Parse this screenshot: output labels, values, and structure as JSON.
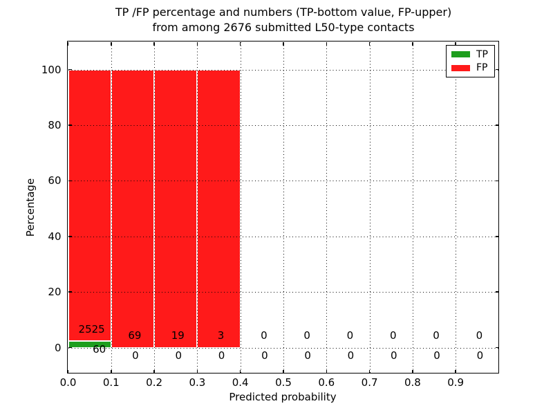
{
  "title": {
    "line1": "TP /FP percentage and numbers (TP-bottom value, FP-upper)",
    "line2": "from among 2676 submitted L50-type contacts"
  },
  "axes": {
    "xlabel": "Predicted probability",
    "ylabel": "Percentage",
    "x_tick_labels": [
      "0.0",
      "0.1",
      "0.2",
      "0.3",
      "0.4",
      "0.5",
      "0.6",
      "0.7",
      "0.8",
      "0.9"
    ],
    "y_tick_labels": [
      "0",
      "20",
      "40",
      "60",
      "80",
      "100"
    ]
  },
  "legend": {
    "items": [
      {
        "label": "TP",
        "color": "#1e9e1e"
      },
      {
        "label": "FP",
        "color": "#ff1a1a"
      }
    ]
  },
  "chart_data": {
    "type": "bar",
    "stacked": true,
    "title": "TP /FP percentage and numbers (TP-bottom value, FP-upper) from among 2676 submitted L50-type contacts",
    "xlabel": "Predicted probability",
    "ylabel": "Percentage",
    "xlim": [
      0.0,
      1.0
    ],
    "ylim": [
      -9.2,
      110
    ],
    "grid": true,
    "legend_position": "upper right",
    "total_contacts": 2676,
    "bin_edges": [
      0.0,
      0.1,
      0.2,
      0.3,
      0.4,
      0.5,
      0.6,
      0.7,
      0.8,
      0.9,
      1.0
    ],
    "x_ticks": [
      0.0,
      0.1,
      0.2,
      0.3,
      0.4,
      0.5,
      0.6,
      0.7,
      0.8,
      0.9
    ],
    "y_ticks": [
      0,
      20,
      40,
      60,
      80,
      100
    ],
    "series": [
      {
        "name": "TP",
        "color": "#1e9e1e",
        "counts": [
          60,
          0,
          0,
          0,
          0,
          0,
          0,
          0,
          0,
          0
        ],
        "percentages": [
          2.32,
          0,
          0,
          0,
          0,
          0,
          0,
          0,
          0,
          0
        ]
      },
      {
        "name": "FP",
        "color": "#ff1a1a",
        "counts": [
          2525,
          69,
          19,
          3,
          0,
          0,
          0,
          0,
          0,
          0
        ],
        "percentages": [
          97.68,
          100,
          100,
          100,
          0,
          0,
          0,
          0,
          0,
          0
        ]
      }
    ]
  }
}
